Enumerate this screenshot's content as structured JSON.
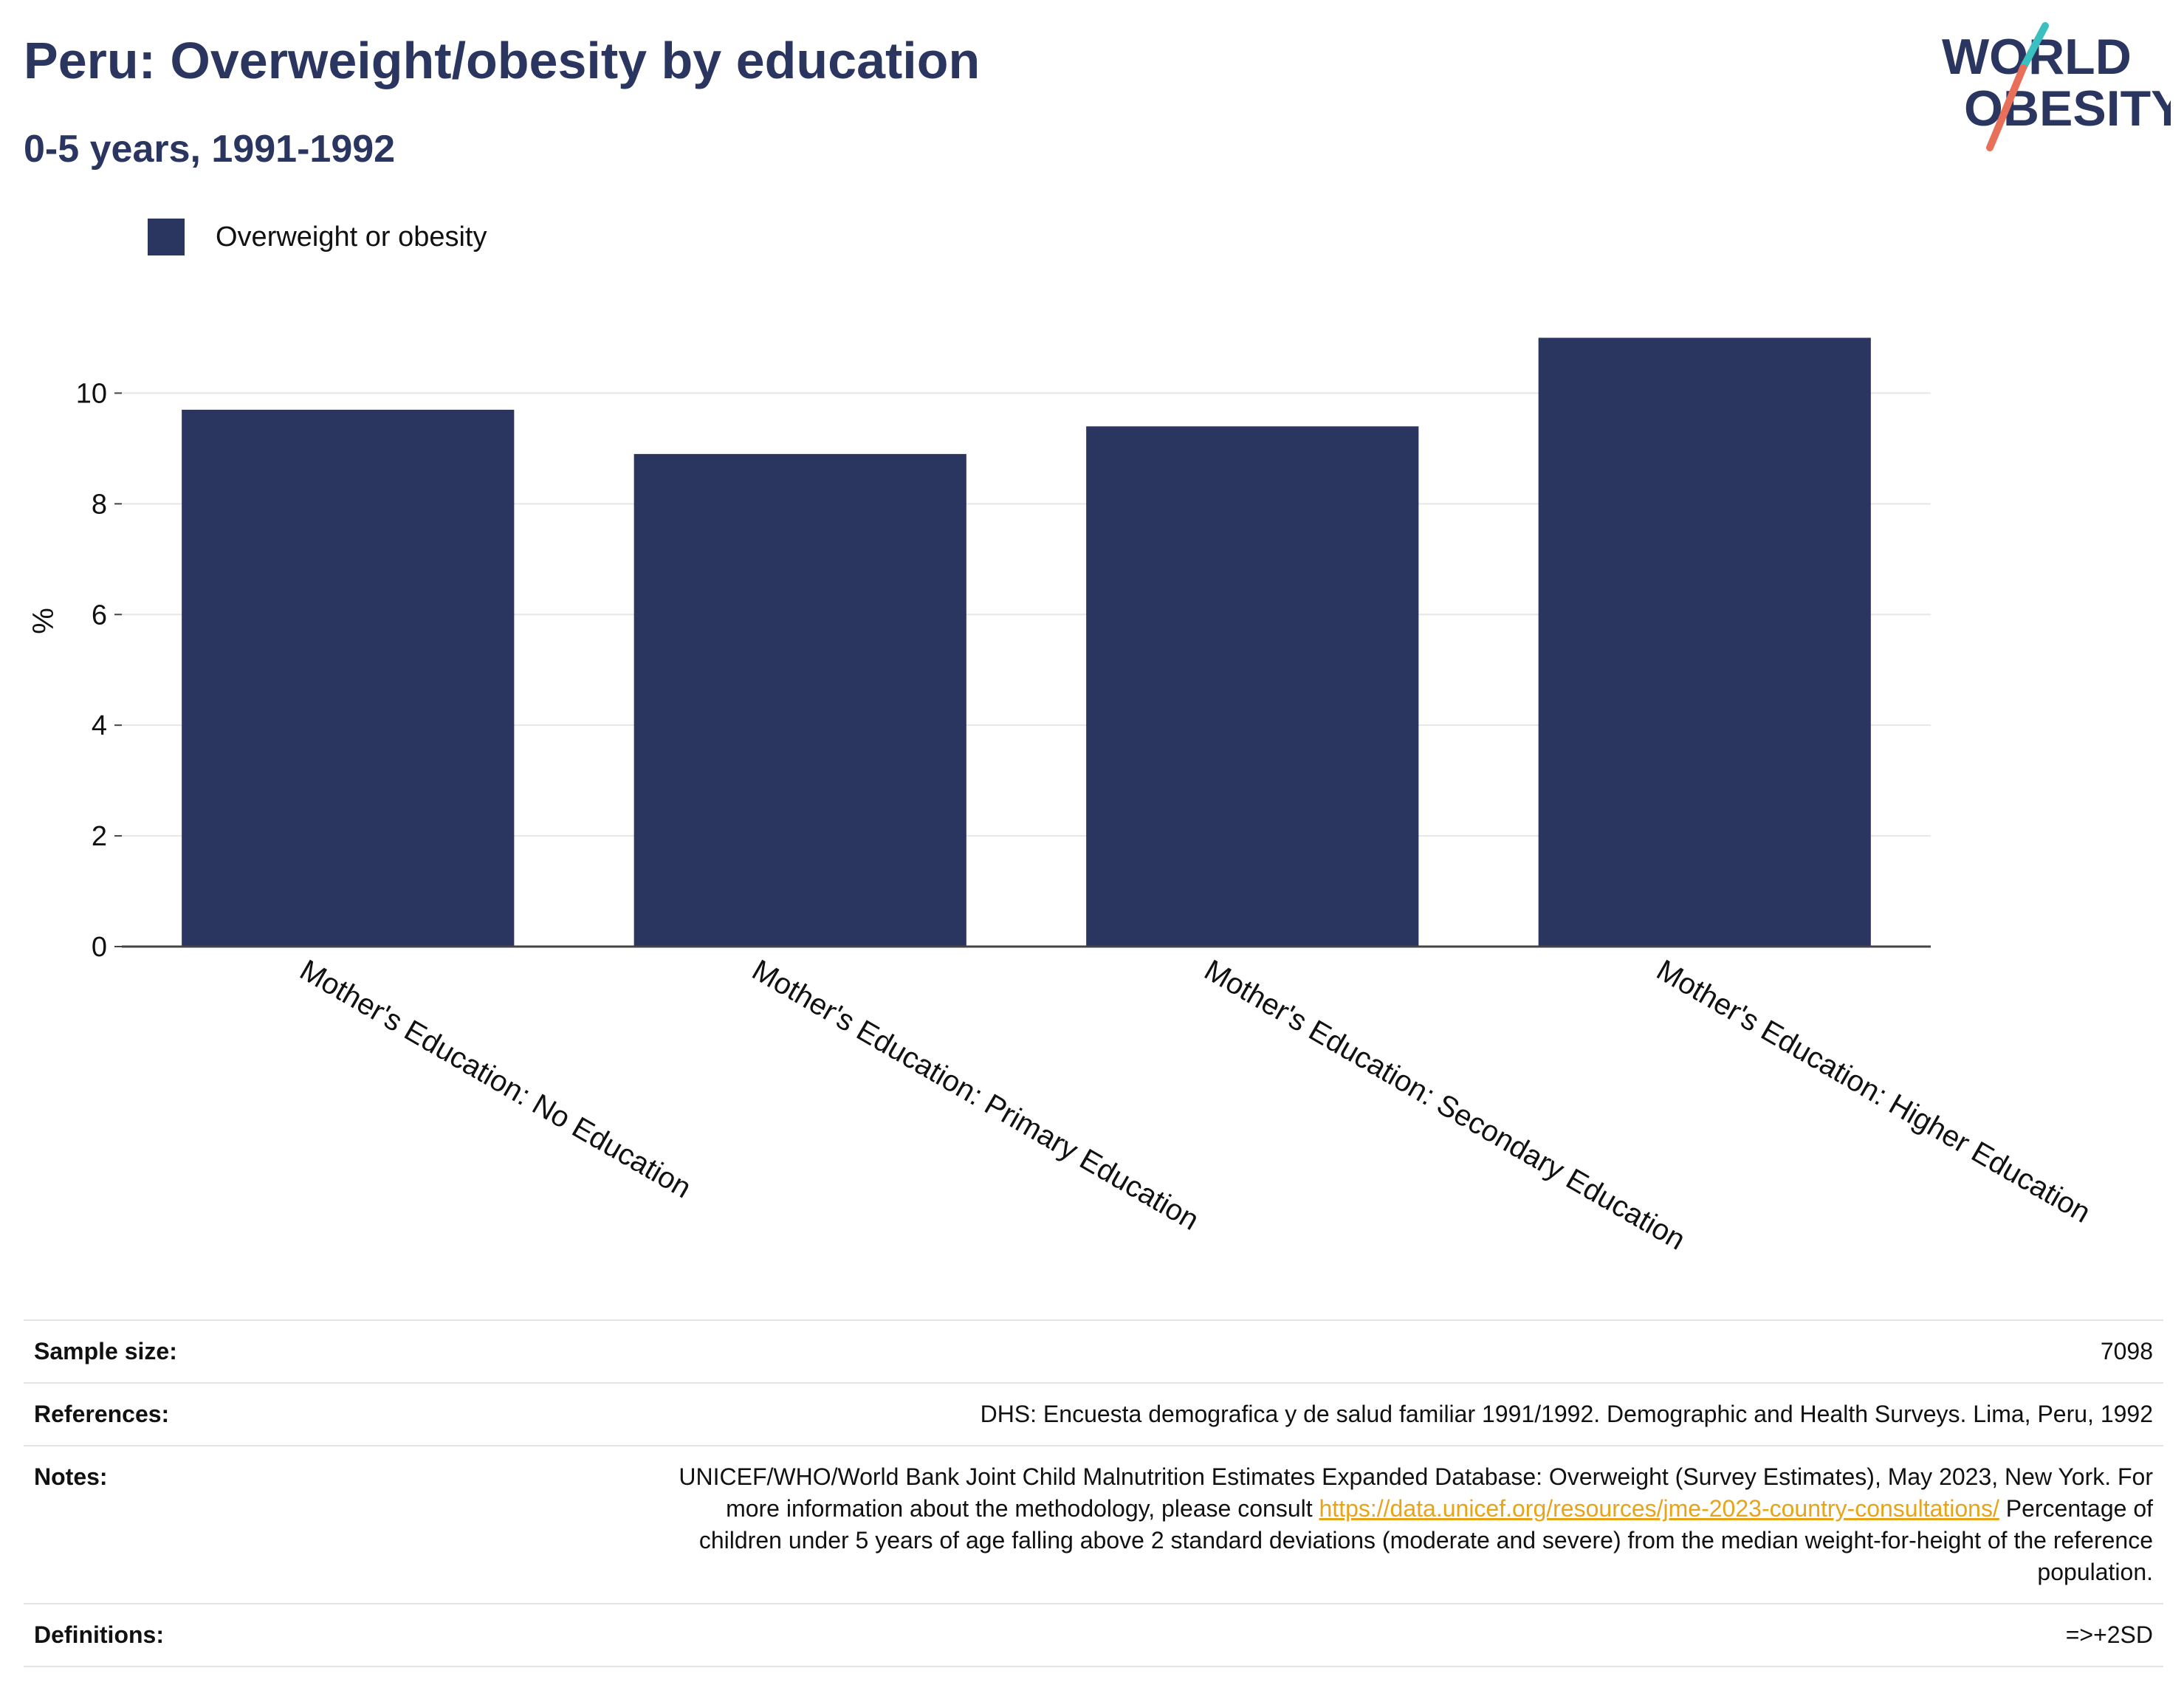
{
  "header": {
    "title": "Peru: Overweight/obesity by education",
    "subtitle": "0-5 years, 1991-1992"
  },
  "logo": {
    "line1": "WORLD",
    "line2": "OBESITY",
    "colors": {
      "text": "#2a3560",
      "slash_top": "#3bbfbf",
      "slash_bottom": "#e8705a"
    }
  },
  "legend": {
    "label": "Overweight or obesity"
  },
  "chart_data": {
    "type": "bar",
    "categories": [
      "Mother's Education: No Education",
      "Mother's Education: Primary Education",
      "Mother's Education: Secondary Education",
      "Mother's Education: Higher Education"
    ],
    "series": [
      {
        "name": "Overweight or obesity",
        "values": [
          9.7,
          8.9,
          9.4,
          11.0
        ],
        "color": "#2a3560"
      }
    ],
    "ylabel": "%",
    "xlabel": "",
    "ylim": [
      0,
      11.5
    ],
    "yticks": [
      0,
      2,
      4,
      6,
      8,
      10
    ],
    "grid": true,
    "legend_position": "top-left"
  },
  "info": {
    "sample_size": {
      "label": "Sample size:",
      "value": "7098"
    },
    "references": {
      "label": "References:",
      "value": "DHS: Encuesta demografica y de salud familiar 1991/1992. Demographic and Health Surveys. Lima, Peru, 1992"
    },
    "notes": {
      "label": "Notes:",
      "text_before": "UNICEF/WHO/World Bank Joint Child Malnutrition Estimates Expanded Database: Overweight (Survey Estimates), May 2023, New York. For more information about the methodology, please consult ",
      "link": "https://data.unicef.org/resources/jme-2023-country-consultations/",
      "text_after": " Percentage of children under 5 years of age falling above 2 standard deviations (moderate and severe) from the median weight-for-height of the reference population."
    },
    "definitions": {
      "label": "Definitions:",
      "value": "=>+2SD"
    }
  }
}
